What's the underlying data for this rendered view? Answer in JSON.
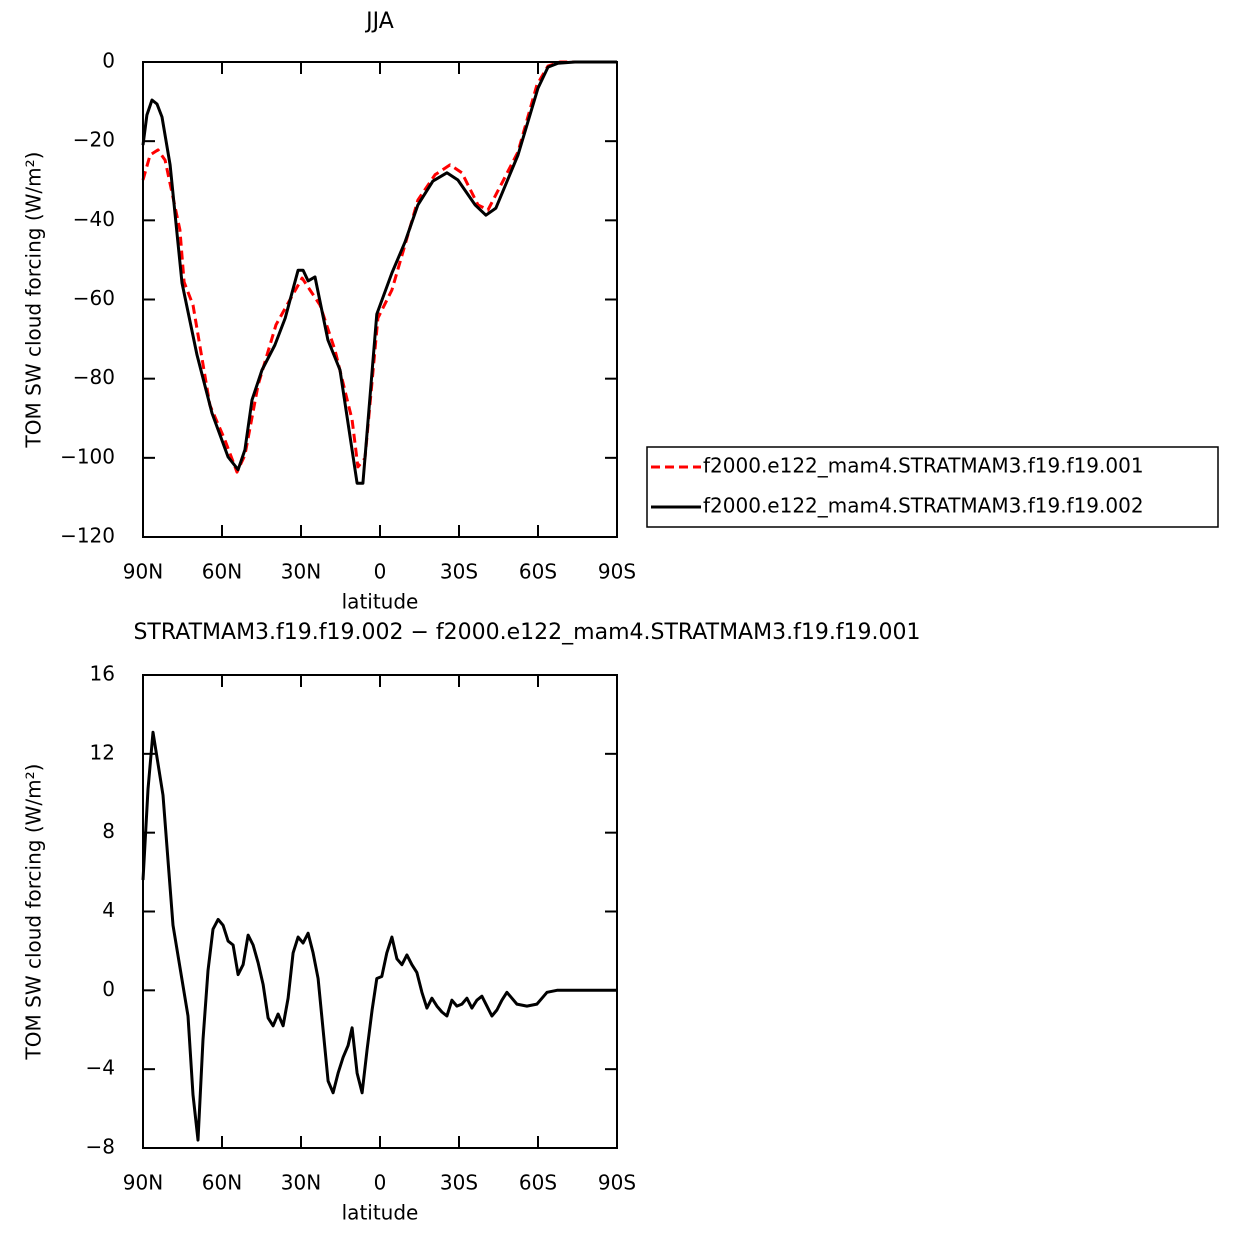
{
  "chart_data": [
    {
      "type": "line",
      "title": "JJA",
      "xlabel": "latitude",
      "ylabel": "TOM SW cloud forcing (W/m²)",
      "xlim": [
        90,
        -90
      ],
      "ylim": [
        -120,
        0
      ],
      "xticks": [
        {
          "value": 90,
          "label": "90N"
        },
        {
          "value": 60,
          "label": "60N"
        },
        {
          "value": 30,
          "label": "30N"
        },
        0,
        {
          "value": -30,
          "label": "30S"
        },
        {
          "value": -60,
          "label": "60S"
        },
        {
          "value": -90,
          "label": "90S"
        }
      ],
      "yticks": [
        {
          "value": -120,
          "label": "−120"
        },
        {
          "value": -100,
          "label": "−100"
        },
        {
          "value": -80,
          "label": "−80"
        },
        {
          "value": -60,
          "label": "−60"
        },
        {
          "value": -40,
          "label": "−40"
        },
        {
          "value": -20,
          "label": "−20"
        },
        0
      ],
      "legend": "right",
      "series": [
        {
          "name": "f2000.e122_mam4.STRATMAM3.f19.f19.001",
          "color": "#ff0000",
          "dash": true,
          "x": [
            90,
            87.3,
            84.3,
            81.6,
            76,
            74.4,
            71,
            64.6,
            58.9,
            54.3,
            51.3,
            46.3,
            39.5,
            34.2,
            29.6,
            26.6,
            22.8,
            17.1,
            10.6,
            8.4,
            5.7,
            0.8,
            -4.5,
            -9.5,
            -14.4,
            -20.9,
            -26.6,
            -31.1,
            -37.2,
            -41,
            -52.4,
            -59.6,
            -63.8,
            -68.3,
            -90
          ],
          "values": [
            -29.8,
            -23.5,
            -22.2,
            -24.8,
            -42.4,
            -55.6,
            -61.4,
            -86.7,
            -95.5,
            -103.6,
            -99.3,
            -81.6,
            -66.4,
            -60.1,
            -54.6,
            -57.6,
            -61.4,
            -72.8,
            -90.4,
            -102.3,
            -100.1,
            -64.7,
            -57.6,
            -46.2,
            -34.9,
            -28.5,
            -26,
            -28,
            -36.1,
            -37.4,
            -22.7,
            -5.8,
            -1,
            0,
            0
          ]
        },
        {
          "name": "f2000.e122_mam4.STRATMAM3.f19.f19.002",
          "color": "#000000",
          "dash": false,
          "x": [
            90,
            88.5,
            86.6,
            84.7,
            82.8,
            79.7,
            75.2,
            69.5,
            63.8,
            57.7,
            53.9,
            51.3,
            48.6,
            44.8,
            39.9,
            36,
            31.1,
            29.2,
            27.3,
            24.7,
            19.8,
            15.2,
            8.7,
            6.5,
            1.2,
            -4.5,
            -9.5,
            -14.4,
            -20.1,
            -25.4,
            -29.6,
            -36.1,
            -40.2,
            -44,
            -52.4,
            -60,
            -63.8,
            -67.6,
            -74,
            -90
          ],
          "values": [
            -21,
            -13.4,
            -9.6,
            -10.6,
            -13.9,
            -26,
            -55.8,
            -74,
            -88.7,
            -99.8,
            -103,
            -98,
            -85.4,
            -77.8,
            -71.5,
            -64.7,
            -52.6,
            -52.6,
            -55.3,
            -54.3,
            -70.2,
            -77.8,
            -106.4,
            -106.4,
            -63.7,
            -53.3,
            -45.5,
            -36.1,
            -30.1,
            -28,
            -29.8,
            -36.1,
            -38.7,
            -36.9,
            -23.5,
            -6.6,
            -1.3,
            -0.3,
            0,
            0
          ]
        }
      ]
    },
    {
      "type": "line",
      "title": "STRATMAM3.f19.f19.002 − f2000.e122_mam4.STRATMAM3.f19.f19.001",
      "xlabel": "latitude",
      "ylabel": "TOM SW cloud forcing (W/m²)",
      "xlim": [
        90,
        -90
      ],
      "ylim": [
        -8,
        16
      ],
      "xticks": [
        {
          "value": 90,
          "label": "90N"
        },
        {
          "value": 60,
          "label": "60N"
        },
        {
          "value": 30,
          "label": "30N"
        },
        0,
        {
          "value": -30,
          "label": "30S"
        },
        {
          "value": -60,
          "label": "60S"
        },
        {
          "value": -90,
          "label": "90S"
        }
      ],
      "yticks": [
        {
          "value": -8,
          "label": "−8"
        },
        {
          "value": -4,
          "label": "−4"
        },
        0,
        4,
        8,
        12,
        16
      ],
      "series": [
        {
          "color": "#000000",
          "dash": false,
          "x": [
            90,
            88.1,
            86.2,
            82.4,
            78.6,
            72.9,
            71,
            69.1,
            67.2,
            65.3,
            63.4,
            61.5,
            59.6,
            57.7,
            55.8,
            53.9,
            52,
            50.1,
            48.2,
            46.3,
            44.4,
            42.5,
            40.6,
            38.7,
            36.8,
            34.9,
            33,
            31.1,
            29.2,
            27.3,
            25.4,
            23.5,
            21.6,
            19.7,
            17.8,
            15.9,
            14,
            12.1,
            10.6,
            8.7,
            6.8,
            4.9,
            3,
            1.2,
            -0.7,
            -2.6,
            -4.5,
            -6.4,
            -8.3,
            -10.2,
            -12.1,
            -14,
            -15.9,
            -17.8,
            -19.7,
            -21.6,
            -23.5,
            -25.4,
            -27.3,
            -29.2,
            -31.1,
            -33,
            -34.9,
            -36.8,
            -38.7,
            -40.6,
            -42.5,
            -44.4,
            -46.3,
            -48.2,
            -50.1,
            -52,
            -55.8,
            -59.6,
            -61.5,
            -63.4,
            -67.2,
            -90
          ],
          "values": [
            5.6,
            10.2,
            13.1,
            9.9,
            3.3,
            -1.3,
            -5.3,
            -7.6,
            -2.5,
            1,
            3.1,
            3.6,
            3.3,
            2.5,
            2.3,
            0.8,
            1.3,
            2.8,
            2.3,
            1.4,
            0.3,
            -1.4,
            -1.8,
            -1.2,
            -1.8,
            -0.4,
            1.9,
            2.7,
            2.4,
            2.9,
            1.9,
            0.6,
            -2,
            -4.6,
            -5.2,
            -4.2,
            -3.4,
            -2.8,
            -1.9,
            -4.2,
            -5.2,
            -3,
            -1,
            0.6,
            0.7,
            1.9,
            2.7,
            1.6,
            1.3,
            1.8,
            1.3,
            0.9,
            -0.1,
            -0.9,
            -0.4,
            -0.8,
            -1.1,
            -1.3,
            -0.5,
            -0.8,
            -0.7,
            -0.4,
            -0.9,
            -0.5,
            -0.3,
            -0.8,
            -1.3,
            -1,
            -0.5,
            -0.1,
            -0.4,
            -0.7,
            -0.8,
            -0.7,
            -0.4,
            -0.1,
            0,
            0
          ]
        }
      ]
    }
  ]
}
